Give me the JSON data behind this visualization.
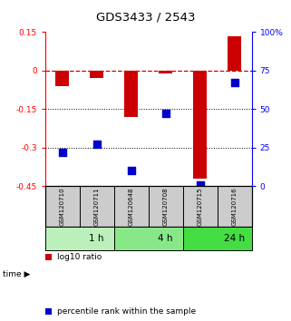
{
  "title": "GDS3433 / 2543",
  "samples": [
    "GSM120710",
    "GSM120711",
    "GSM120648",
    "GSM120708",
    "GSM120715",
    "GSM120716"
  ],
  "log10_ratio": [
    -0.06,
    -0.03,
    -0.18,
    -0.01,
    -0.42,
    0.135
  ],
  "percentile_rank": [
    22,
    27,
    10,
    47,
    1,
    67
  ],
  "groups": [
    {
      "label": "1 h",
      "color": "#bbf0bb",
      "start": 0,
      "end": 2
    },
    {
      "label": "4 h",
      "color": "#88e888",
      "start": 2,
      "end": 4
    },
    {
      "label": "24 h",
      "color": "#44dd44",
      "start": 4,
      "end": 6
    }
  ],
  "ylim_left": [
    -0.45,
    0.15
  ],
  "ylim_right": [
    0,
    100
  ],
  "yticks_left": [
    0.15,
    0,
    -0.15,
    -0.3,
    -0.45
  ],
  "yticks_right": [
    100,
    75,
    50,
    25,
    0
  ],
  "dotted_lines": [
    -0.15,
    -0.3
  ],
  "bar_color": "#cc0000",
  "dot_color": "#0000cc",
  "bar_width": 0.4,
  "dot_size": 28,
  "label_log10": "log10 ratio",
  "label_pct": "percentile rank within the sample",
  "sample_box_color": "#cccccc"
}
